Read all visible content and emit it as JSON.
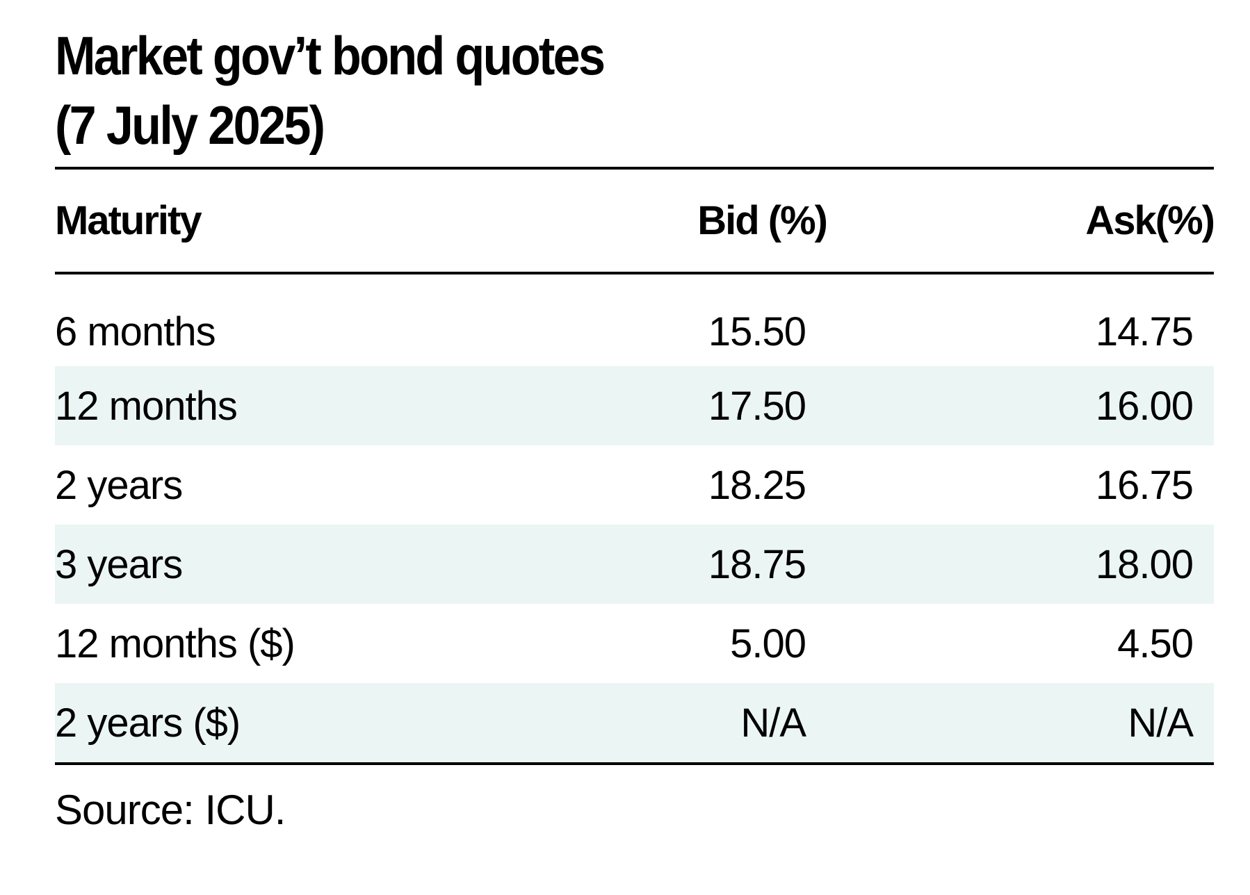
{
  "title_line1": "Market gov’t bond quotes",
  "title_line2": "(7 July 2025)",
  "columns": {
    "maturity": "Maturity",
    "bid": "Bid (%)",
    "ask": "Ask(%)"
  },
  "rows": [
    {
      "maturity": "6 months",
      "bid": "15.50",
      "ask": "14.75"
    },
    {
      "maturity": "12 months",
      "bid": "17.50",
      "ask": "16.00"
    },
    {
      "maturity": "2 years",
      "bid": "18.25",
      "ask": "16.75"
    },
    {
      "maturity": "3 years",
      "bid": "18.75",
      "ask": "18.00"
    },
    {
      "maturity": "12 months ($)",
      "bid": "5.00",
      "ask": "4.50"
    },
    {
      "maturity": "2 years ($)",
      "bid": "N/A",
      "ask": "N/A"
    }
  ],
  "source": "Source: ICU.",
  "colors": {
    "stripe": "#ebf5f3",
    "rule": "#000000"
  }
}
